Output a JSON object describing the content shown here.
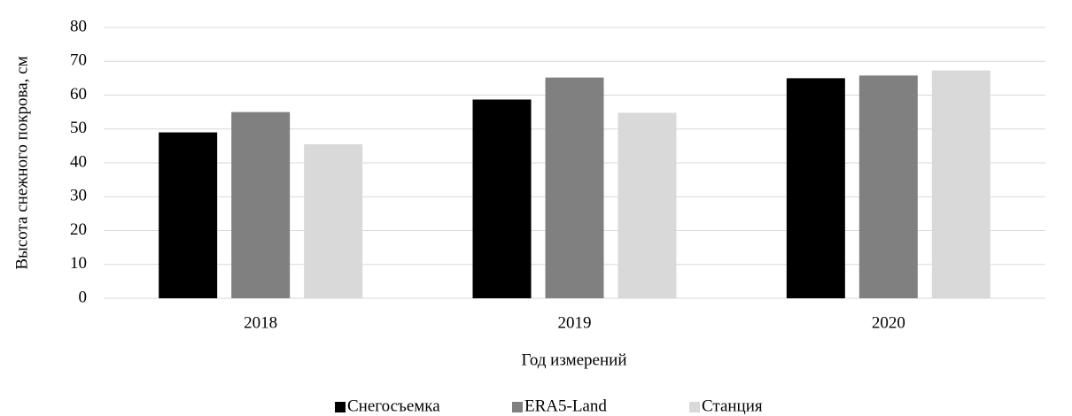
{
  "chart_data": {
    "type": "bar",
    "x_label": "Год измерений",
    "y_label": "Высота снежного покрова, см",
    "categories": [
      "2018",
      "2019",
      "2020"
    ],
    "series": [
      {
        "name": "Снегосъемка",
        "color": "#000000",
        "values": [
          49,
          58.7,
          65
        ]
      },
      {
        "name": "ERA5-Land",
        "color": "#808080",
        "values": [
          55,
          65.2,
          65.8
        ]
      },
      {
        "name": "Станция",
        "color": "#d9d9d9",
        "values": [
          45.5,
          54.8,
          67.3
        ]
      }
    ],
    "ylim": [
      0,
      80
    ],
    "yticks": [
      0,
      10,
      20,
      30,
      40,
      50,
      60,
      70,
      80
    ],
    "grid": true,
    "legend": "bottom"
  }
}
